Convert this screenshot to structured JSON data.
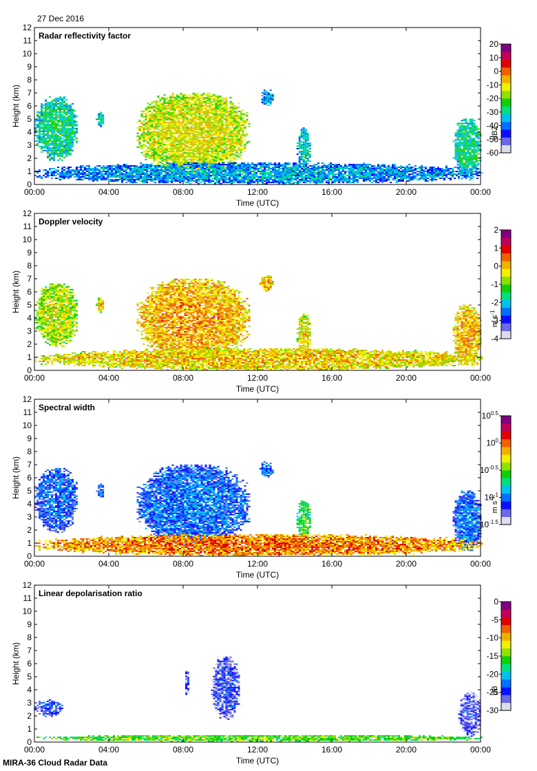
{
  "header": {
    "date": "27 Dec 2016"
  },
  "footer": {
    "instrument": "MIRA-36 Cloud Radar Data"
  },
  "colors": {
    "colormap": [
      "#dcdcf0",
      "#6a6ae8",
      "#0a10ff",
      "#0070ff",
      "#00c0f0",
      "#00e080",
      "#10d000",
      "#90e000",
      "#f0f000",
      "#f0b000",
      "#f06000",
      "#e00000",
      "#c0005a",
      "#800080"
    ],
    "axis": "#000000",
    "background": "#ffffff"
  },
  "chart_data": [
    {
      "type": "heatmap",
      "title": "Radar reflectivity factor",
      "xlabel": "Time (UTC)",
      "ylabel": "Height (km)",
      "xticks": [
        "00:00",
        "04:00",
        "08:00",
        "12:00",
        "16:00",
        "20:00",
        "00:00"
      ],
      "yticks": [
        "0",
        "1",
        "2",
        "3",
        "4",
        "5",
        "6",
        "7",
        "8",
        "9",
        "10",
        "11",
        "12"
      ],
      "xlim_hours": [
        0,
        24
      ],
      "ylim_km": [
        0,
        12
      ],
      "colorbar": {
        "label": "dBZ",
        "ticks": [
          "20",
          "10",
          "0",
          "-10",
          "-20",
          "-30",
          "-40",
          "-50",
          "-60"
        ],
        "range": [
          -60,
          20
        ]
      },
      "features": [
        {
          "name": "early-layer",
          "t": [
            0.0,
            2.3
          ],
          "h": [
            1.8,
            6.7
          ],
          "v": 0.35
        },
        {
          "name": "small-cloud-0420",
          "t": [
            3.3,
            3.7
          ],
          "h": [
            4.4,
            5.5
          ],
          "v": 0.3
        },
        {
          "name": "main-cloud",
          "t": [
            5.5,
            11.5
          ],
          "h": [
            0.8,
            7.0
          ],
          "v": 0.55
        },
        {
          "name": "high-cloud-1200",
          "t": [
            12.1,
            12.8
          ],
          "h": [
            6.0,
            7.2
          ],
          "v": 0.25
        },
        {
          "name": "shower-1430",
          "t": [
            14.1,
            14.8
          ],
          "h": [
            1.0,
            4.3
          ],
          "v": 0.3
        },
        {
          "name": "end-cloud",
          "t": [
            22.5,
            24.0
          ],
          "h": [
            0.3,
            5.0
          ],
          "v": 0.35
        },
        {
          "name": "boundary-layer",
          "t": [
            0.0,
            24.0
          ],
          "h": [
            0.0,
            1.6
          ],
          "v": 0.25
        }
      ]
    },
    {
      "type": "heatmap",
      "title": "Doppler velocity",
      "xlabel": "Time (UTC)",
      "ylabel": "Height (km)",
      "xticks": [
        "00:00",
        "04:00",
        "08:00",
        "12:00",
        "16:00",
        "20:00",
        "00:00"
      ],
      "yticks": [
        "0",
        "1",
        "2",
        "3",
        "4",
        "5",
        "6",
        "7",
        "8",
        "9",
        "10",
        "11",
        "12"
      ],
      "xlim_hours": [
        0,
        24
      ],
      "ylim_km": [
        0,
        12
      ],
      "colorbar": {
        "label": "m s-1",
        "ticks": [
          "2",
          "1",
          "0",
          "-1",
          "-2",
          "-3",
          "-4"
        ],
        "range": [
          -4,
          2
        ]
      },
      "features": [
        {
          "name": "early-layer",
          "t": [
            0.0,
            2.3
          ],
          "h": [
            1.8,
            6.7
          ],
          "v": 0.52
        },
        {
          "name": "small-cloud-0420",
          "t": [
            3.3,
            3.7
          ],
          "h": [
            4.4,
            5.5
          ],
          "v": 0.58
        },
        {
          "name": "main-cloud",
          "t": [
            5.5,
            11.5
          ],
          "h": [
            0.8,
            7.0
          ],
          "v": 0.64
        },
        {
          "name": "high-cloud-1200",
          "t": [
            12.1,
            12.8
          ],
          "h": [
            6.0,
            7.2
          ],
          "v": 0.62
        },
        {
          "name": "shower-1430",
          "t": [
            14.1,
            14.8
          ],
          "h": [
            1.0,
            4.3
          ],
          "v": 0.56
        },
        {
          "name": "end-cloud",
          "t": [
            22.5,
            24.0
          ],
          "h": [
            0.3,
            5.0
          ],
          "v": 0.62
        },
        {
          "name": "boundary-layer",
          "t": [
            0.0,
            24.0
          ],
          "h": [
            0.0,
            1.6
          ],
          "v": 0.6
        }
      ]
    },
    {
      "type": "heatmap",
      "title": "Spectral width",
      "xlabel": "Time (UTC)",
      "ylabel": "Height (km)",
      "xticks": [
        "00:00",
        "04:00",
        "08:00",
        "12:00",
        "16:00",
        "20:00",
        "00:00"
      ],
      "yticks": [
        "0",
        "1",
        "2",
        "3",
        "4",
        "5",
        "6",
        "7",
        "8",
        "9",
        "10",
        "11",
        "12"
      ],
      "xlim_hours": [
        0,
        24
      ],
      "ylim_km": [
        0,
        12
      ],
      "colorbar": {
        "label": "m s-1",
        "ticks": [
          "10^0.5",
          "10^0",
          "10^-0.5",
          "10^-1",
          "10^-1.5"
        ],
        "range": [
          -1.5,
          0.5
        ]
      },
      "features": [
        {
          "name": "early-layer",
          "t": [
            0.0,
            2.3
          ],
          "h": [
            1.8,
            6.7
          ],
          "v": 0.18
        },
        {
          "name": "small-cloud-0420",
          "t": [
            3.3,
            3.7
          ],
          "h": [
            4.4,
            5.5
          ],
          "v": 0.18
        },
        {
          "name": "main-cloud",
          "t": [
            5.5,
            11.5
          ],
          "h": [
            0.8,
            7.0
          ],
          "v": 0.2
        },
        {
          "name": "high-cloud-1200",
          "t": [
            12.1,
            12.8
          ],
          "h": [
            6.0,
            7.2
          ],
          "v": 0.2
        },
        {
          "name": "shower-1430",
          "t": [
            14.1,
            14.8
          ],
          "h": [
            1.0,
            4.3
          ],
          "v": 0.4
        },
        {
          "name": "end-cloud",
          "t": [
            22.5,
            24.0
          ],
          "h": [
            0.3,
            5.0
          ],
          "v": 0.2
        },
        {
          "name": "boundary-layer",
          "t": [
            0.0,
            24.0
          ],
          "h": [
            0.0,
            1.6
          ],
          "v": 0.68
        }
      ]
    },
    {
      "type": "heatmap",
      "title": "Linear depolarisation ratio",
      "xlabel": "Time (UTC)",
      "ylabel": "Height (km)",
      "xticks": [
        "00:00",
        "04:00",
        "08:00",
        "12:00",
        "16:00",
        "20:00",
        "00:00"
      ],
      "yticks": [
        "0",
        "1",
        "2",
        "3",
        "4",
        "5",
        "6",
        "7",
        "8",
        "9",
        "10",
        "11",
        "12"
      ],
      "xlim_hours": [
        0,
        24
      ],
      "ylim_km": [
        0,
        12
      ],
      "colorbar": {
        "label": "dB",
        "ticks": [
          "0",
          "-5",
          "-10",
          "-15",
          "-20",
          "-25",
          "-30"
        ],
        "range": [
          -30,
          0
        ]
      },
      "features": [
        {
          "name": "early-layer",
          "t": [
            0.0,
            1.5
          ],
          "h": [
            1.9,
            3.2
          ],
          "v": 0.12
        },
        {
          "name": "cloud-0800",
          "t": [
            8.0,
            8.3
          ],
          "h": [
            3.5,
            5.5
          ],
          "v": 0.08
        },
        {
          "name": "main-cloud",
          "t": [
            9.5,
            11.0
          ],
          "h": [
            1.7,
            6.6
          ],
          "v": 0.1
        },
        {
          "name": "end-cloud",
          "t": [
            22.8,
            24.0
          ],
          "h": [
            0.3,
            3.8
          ],
          "v": 0.08
        },
        {
          "name": "boundary-layer",
          "t": [
            0.0,
            24.0
          ],
          "h": [
            0.0,
            0.5
          ],
          "v": 0.45
        }
      ]
    }
  ]
}
